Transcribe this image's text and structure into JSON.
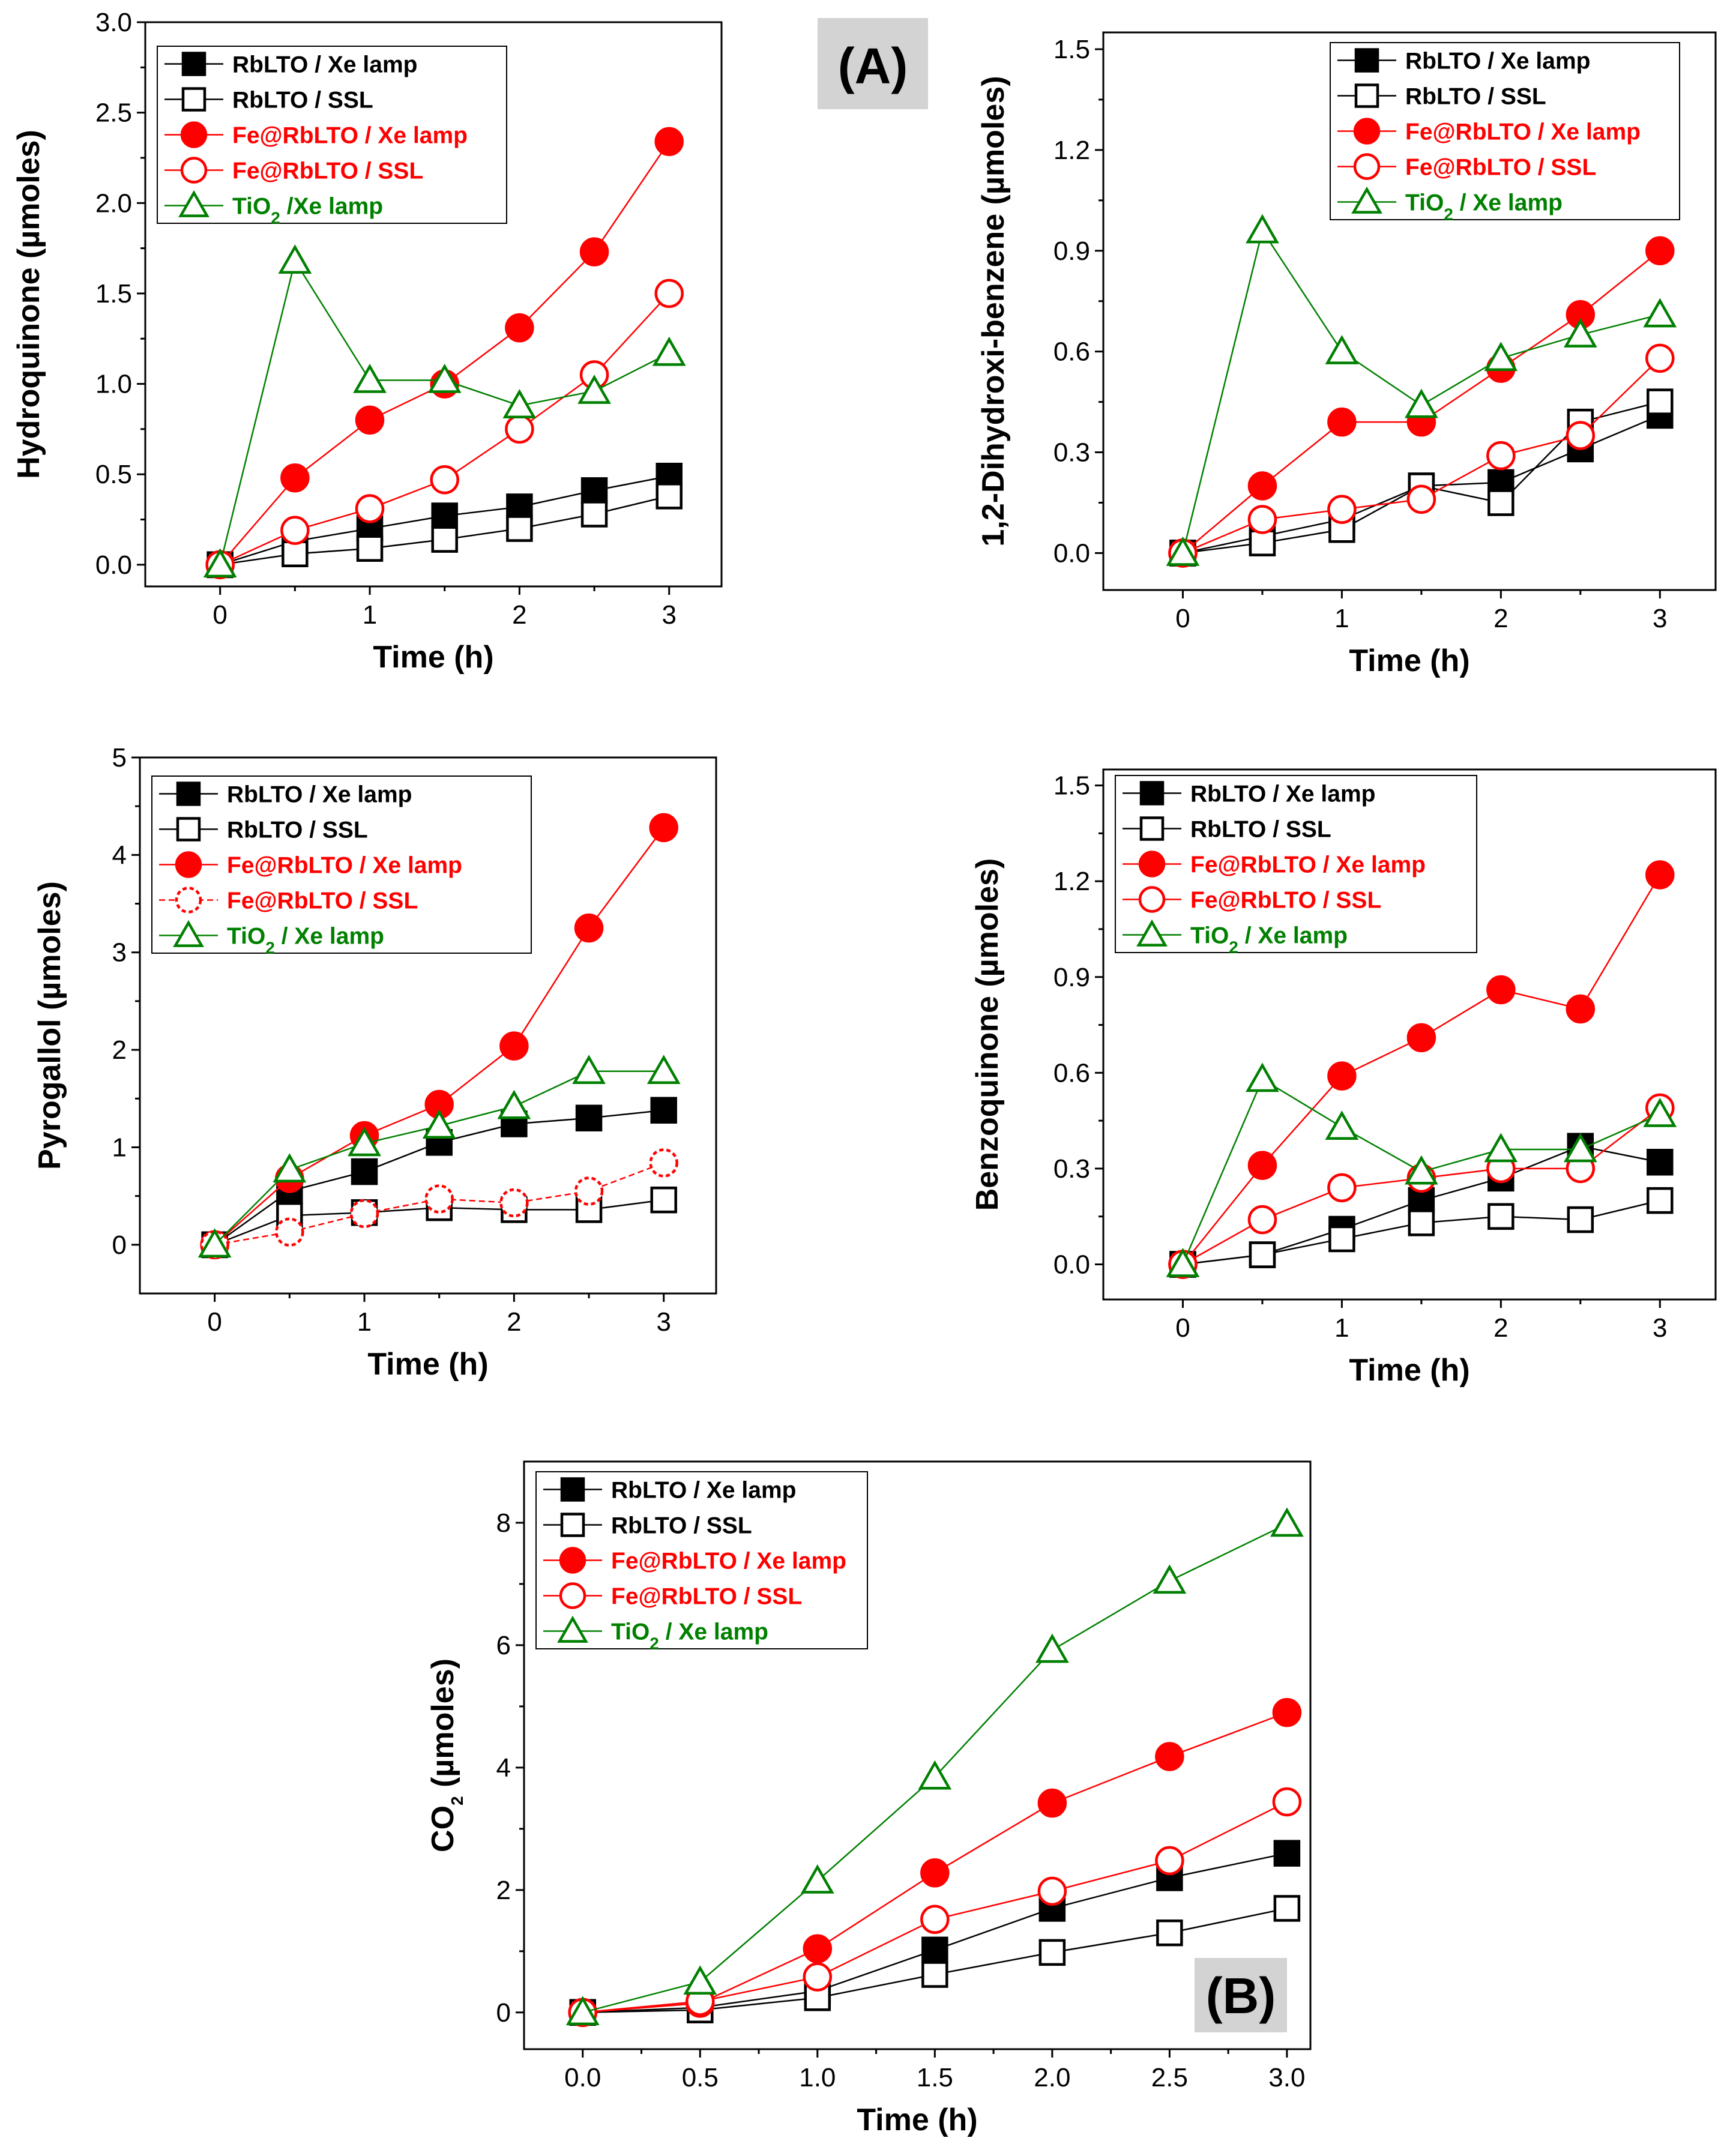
{
  "figure": {
    "tag_a": "(A)",
    "tag_b": "(B)"
  },
  "series_styles": [
    {
      "name": "RbLTO / Xe lamp",
      "marker": "square",
      "filled": true,
      "color": "#000000",
      "label_color": "#000000"
    },
    {
      "name": "RbLTO / SSL",
      "marker": "square",
      "filled": false,
      "color": "#000000",
      "label_color": "#000000"
    },
    {
      "name": "Fe@RbLTO / Xe lamp",
      "marker": "circle",
      "filled": true,
      "color": "#ff0000",
      "label_color": "#ff0000"
    },
    {
      "name": "Fe@RbLTO / SSL",
      "marker": "circle",
      "filled": false,
      "color": "#ff0000",
      "label_color": "#ff0000"
    },
    {
      "name": "TiO2 / Xe lamp",
      "marker": "triangle",
      "filled": false,
      "color": "#008000",
      "label_color": "#008000"
    }
  ],
  "chart_data": [
    {
      "id": "hydroquinone",
      "type": "line",
      "title": "",
      "xlabel": "Time (h)",
      "ylabel": "Hydroquinone (µmoles)",
      "x": [
        0,
        0.5,
        1,
        1.5,
        2,
        2.5,
        3
      ],
      "xlim": [
        -0.5,
        3.35
      ],
      "ylim": [
        -0.12,
        3.0
      ],
      "xticks": [
        0,
        1,
        2,
        3
      ],
      "xtick_labels": [
        "0",
        "1",
        "2",
        "3"
      ],
      "yticks": [
        0,
        0.5,
        1,
        1.5,
        2,
        2.5,
        3
      ],
      "ytick_labels": [
        "0.0",
        "0.5",
        "1.0",
        "1.5",
        "2.0",
        "2.5",
        "3.0"
      ],
      "legend": [
        "RbLTO / Xe lamp",
        "RbLTO / SSL",
        "Fe@RbLTO / Xe lamp",
        "Fe@RbLTO / SSL",
        "TiO₂ /Xe lamp"
      ],
      "legend_position": "top-left",
      "series": [
        {
          "name": "RbLTO / Xe lamp",
          "values": [
            0.0,
            0.13,
            0.2,
            0.27,
            0.32,
            0.41,
            0.49
          ]
        },
        {
          "name": "RbLTO / SSL",
          "values": [
            0.0,
            0.06,
            0.09,
            0.14,
            0.2,
            0.28,
            0.38
          ]
        },
        {
          "name": "Fe@RbLTO / Xe lamp",
          "values": [
            0.0,
            0.48,
            0.8,
            1.0,
            1.31,
            1.73,
            2.34
          ]
        },
        {
          "name": "Fe@RbLTO / SSL",
          "values": [
            0.0,
            0.19,
            0.31,
            0.47,
            0.75,
            1.05,
            1.5
          ]
        },
        {
          "name": "TiO2 / Xe lamp",
          "values": [
            0.0,
            1.68,
            1.02,
            1.02,
            0.88,
            0.96,
            1.17
          ]
        }
      ]
    },
    {
      "id": "dihydroxibenzene",
      "type": "line",
      "title": "",
      "xlabel": "Time (h)",
      "ylabel": "1,2-Dihydroxi-benzene (µmoles)",
      "x": [
        0,
        0.5,
        1,
        1.5,
        2,
        2.5,
        3
      ],
      "xlim": [
        -0.5,
        3.35
      ],
      "ylim": [
        -0.11,
        1.55
      ],
      "xticks": [
        0,
        1,
        2,
        3
      ],
      "xtick_labels": [
        "0",
        "1",
        "2",
        "3"
      ],
      "yticks": [
        0,
        0.3,
        0.6,
        0.9,
        1.2,
        1.5
      ],
      "ytick_labels": [
        "0.0",
        "0.3",
        "0.6",
        "0.9",
        "1.2",
        "1.5"
      ],
      "legend": [
        "RbLTO / Xe lamp",
        "RbLTO / SSL",
        "Fe@RbLTO / Xe lamp",
        "Fe@RbLTO / SSL",
        "TiO₂ / Xe lamp"
      ],
      "legend_position": "top-right",
      "series": [
        {
          "name": "RbLTO / Xe lamp",
          "values": [
            0.0,
            0.05,
            0.1,
            0.2,
            0.21,
            0.31,
            0.41
          ]
        },
        {
          "name": "RbLTO / SSL",
          "values": [
            0.0,
            0.03,
            0.07,
            0.2,
            0.15,
            0.39,
            0.45
          ]
        },
        {
          "name": "Fe@RbLTO / Xe lamp",
          "values": [
            0.0,
            0.2,
            0.39,
            0.39,
            0.55,
            0.71,
            0.9
          ]
        },
        {
          "name": "Fe@RbLTO / SSL",
          "values": [
            0.0,
            0.1,
            0.13,
            0.16,
            0.29,
            0.35,
            0.58
          ]
        },
        {
          "name": "TiO2 / Xe lamp",
          "values": [
            0.0,
            0.96,
            0.6,
            0.44,
            0.58,
            0.65,
            0.71
          ]
        }
      ]
    },
    {
      "id": "pyrogallol",
      "type": "line",
      "title": "",
      "xlabel": "Time (h)",
      "ylabel": "Pyrogallol (µmoles)",
      "x": [
        0,
        0.5,
        1,
        1.5,
        2,
        2.5,
        3
      ],
      "xlim": [
        -0.5,
        3.35
      ],
      "ylim": [
        -0.5,
        5.0
      ],
      "xticks": [
        0,
        1,
        2,
        3
      ],
      "xtick_labels": [
        "0",
        "1",
        "2",
        "3"
      ],
      "yticks": [
        0,
        1,
        2,
        3,
        4,
        5
      ],
      "ytick_labels": [
        "0",
        "1",
        "2",
        "3",
        "4",
        "5"
      ],
      "legend": [
        "RbLTO / Xe lamp",
        "RbLTO / SSL",
        "Fe@RbLTO / Xe lamp",
        "Fe@RbLTO / SSL",
        "TiO₂ / Xe lamp"
      ],
      "legend_position": "top-left",
      "series": [
        {
          "name": "RbLTO / Xe lamp",
          "values": [
            0.0,
            0.55,
            0.75,
            1.05,
            1.24,
            1.3,
            1.38
          ]
        },
        {
          "name": "RbLTO / SSL",
          "values": [
            0.0,
            0.3,
            0.33,
            0.38,
            0.36,
            0.36,
            0.46
          ]
        },
        {
          "name": "Fe@RbLTO / Xe lamp",
          "values": [
            0.0,
            0.68,
            1.12,
            1.44,
            2.04,
            3.25,
            4.28
          ]
        },
        {
          "name": "Fe@RbLTO / SSL",
          "values": [
            0.0,
            0.13,
            0.32,
            0.47,
            0.43,
            0.55,
            0.84
          ]
        },
        {
          "name": "TiO2 / Xe lamp",
          "values": [
            0.0,
            0.77,
            1.04,
            1.22,
            1.42,
            1.78,
            1.78
          ]
        }
      ]
    },
    {
      "id": "benzoquinone",
      "type": "line",
      "title": "",
      "xlabel": "Time (h)",
      "ylabel": "Benzoquinone (µmoles)",
      "x": [
        0,
        0.5,
        1,
        1.5,
        2,
        2.5,
        3
      ],
      "xlim": [
        -0.5,
        3.35
      ],
      "ylim": [
        -0.11,
        1.55
      ],
      "xticks": [
        0,
        1,
        2,
        3
      ],
      "xtick_labels": [
        "0",
        "1",
        "2",
        "3"
      ],
      "yticks": [
        0,
        0.3,
        0.6,
        0.9,
        1.2,
        1.5
      ],
      "ytick_labels": [
        "0.0",
        "0.3",
        "0.6",
        "0.9",
        "1.2",
        "1.5"
      ],
      "legend": [
        "RbLTO / Xe lamp",
        "RbLTO / SSL",
        "Fe@RbLTO / Xe lamp",
        "Fe@RbLTO / SSL",
        "TiO₂ / Xe lamp"
      ],
      "legend_position": "top-left",
      "series": [
        {
          "name": "RbLTO / Xe lamp",
          "values": [
            0.0,
            0.03,
            0.11,
            0.2,
            0.27,
            0.37,
            0.32
          ]
        },
        {
          "name": "RbLTO / SSL",
          "values": [
            0.0,
            0.03,
            0.08,
            0.13,
            0.15,
            0.14,
            0.2
          ]
        },
        {
          "name": "Fe@RbLTO / Xe lamp",
          "values": [
            0.0,
            0.31,
            0.59,
            0.71,
            0.86,
            0.8,
            1.22
          ]
        },
        {
          "name": "Fe@RbLTO / SSL",
          "values": [
            0.0,
            0.14,
            0.24,
            0.27,
            0.3,
            0.3,
            0.49
          ]
        },
        {
          "name": "TiO2 / Xe lamp",
          "values": [
            0.0,
            0.58,
            0.43,
            0.29,
            0.36,
            0.36,
            0.47
          ]
        }
      ]
    },
    {
      "id": "co2",
      "type": "line",
      "title": "",
      "xlabel": "Time (h)",
      "ylabel": "CO₂ (µmoles)",
      "x": [
        0,
        0.5,
        1,
        1.5,
        2,
        2.5,
        3
      ],
      "xlim": [
        -0.25,
        3.1
      ],
      "ylim": [
        -0.6,
        9.0
      ],
      "xticks": [
        0,
        0.5,
        1,
        1.5,
        2,
        2.5,
        3
      ],
      "xtick_labels": [
        "0.0",
        "0.5",
        "1.0",
        "1.5",
        "2.0",
        "2.5",
        "3.0"
      ],
      "yticks": [
        0,
        2,
        4,
        6,
        8
      ],
      "ytick_labels": [
        "0",
        "2",
        "4",
        "6",
        "8"
      ],
      "legend": [
        "RbLTO / Xe lamp",
        "RbLTO / SSL",
        "Fe@RbLTO / Xe lamp",
        "Fe@RbLTO / SSL",
        "TiO₂ / Xe lamp"
      ],
      "legend_position": "top-left",
      "series": [
        {
          "name": "RbLTO / Xe lamp",
          "values": [
            0.0,
            0.08,
            0.35,
            1.02,
            1.7,
            2.2,
            2.6
          ]
        },
        {
          "name": "RbLTO / SSL",
          "values": [
            0.0,
            0.04,
            0.24,
            0.62,
            0.98,
            1.3,
            1.7
          ]
        },
        {
          "name": "Fe@RbLTO / Xe lamp",
          "values": [
            0.0,
            0.15,
            1.04,
            2.28,
            3.42,
            4.18,
            4.9
          ]
        },
        {
          "name": "Fe@RbLTO / SSL",
          "values": [
            0.0,
            0.18,
            0.58,
            1.52,
            1.98,
            2.48,
            3.44
          ]
        },
        {
          "name": "TiO2 / Xe lamp",
          "values": [
            0.0,
            0.5,
            2.15,
            3.85,
            5.92,
            7.05,
            7.98
          ]
        }
      ]
    }
  ]
}
